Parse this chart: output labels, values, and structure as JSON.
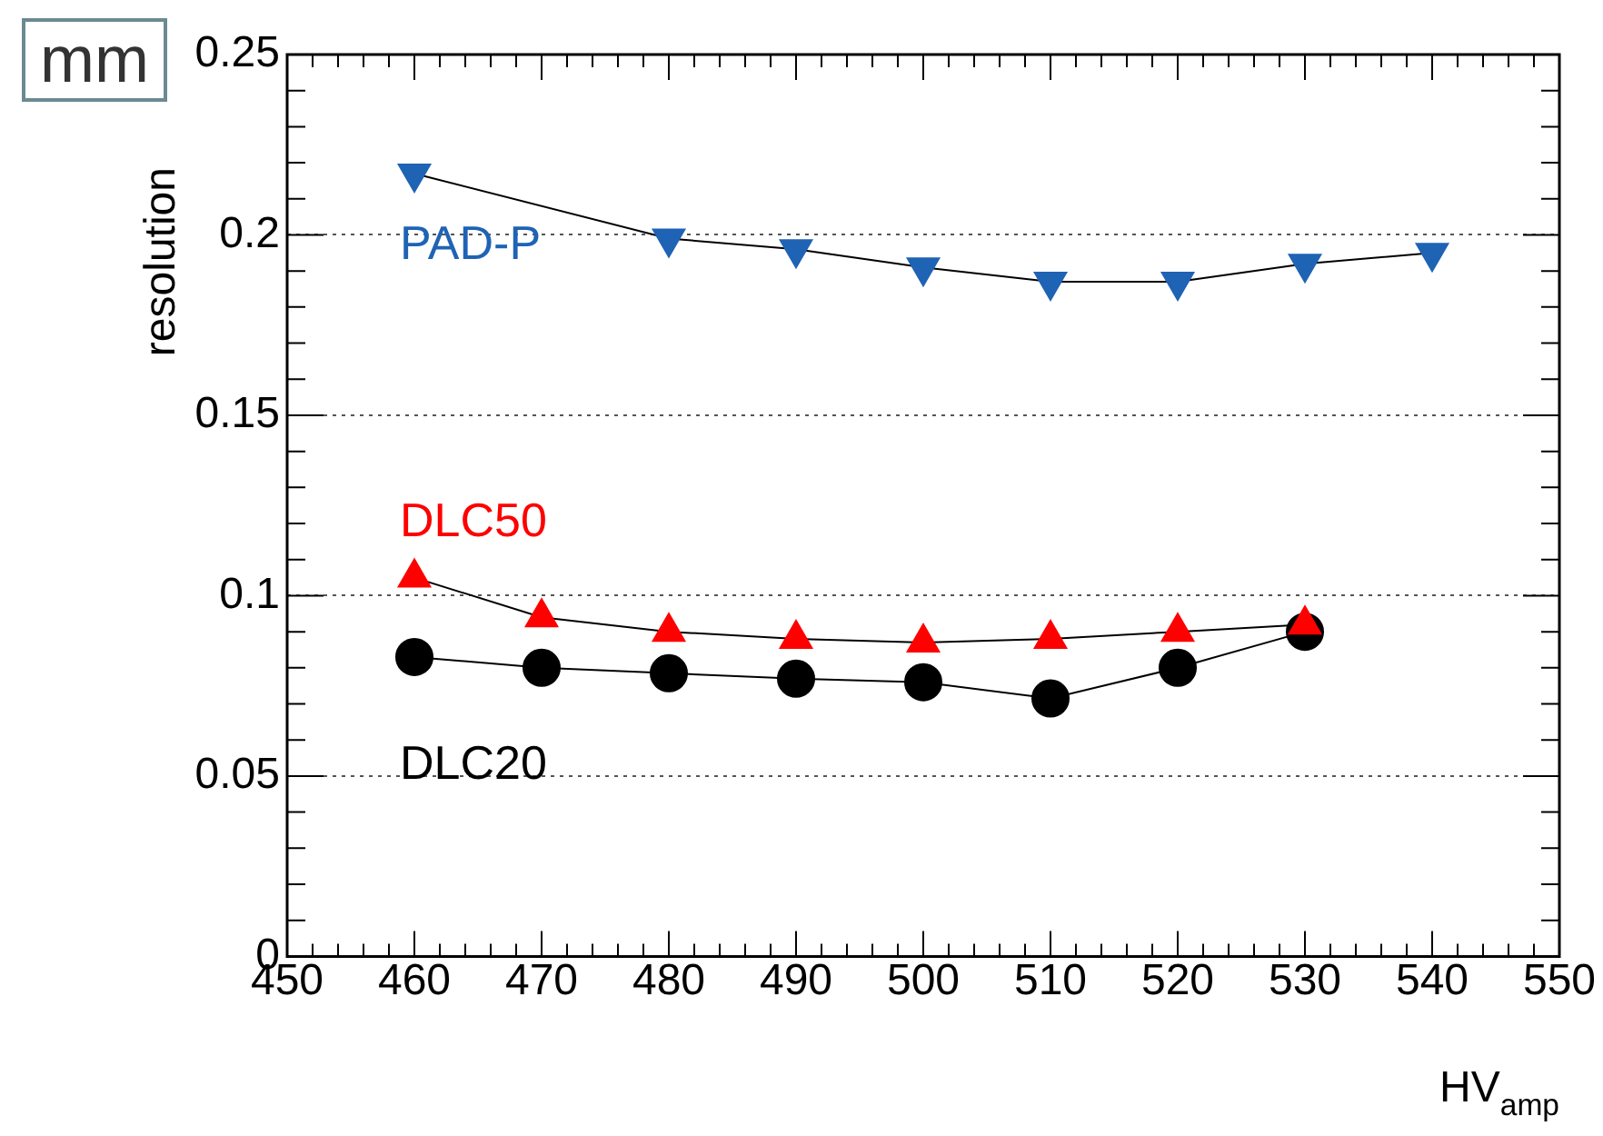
{
  "chart_data": {
    "type": "line",
    "xlabel": "HV$_{amp}$",
    "ylabel": "resolution",
    "annotations": [
      "mm"
    ],
    "xlim": [
      450,
      550
    ],
    "xticks": [
      450,
      460,
      470,
      480,
      490,
      500,
      510,
      520,
      530,
      540,
      550
    ],
    "ylim": [
      0,
      0.25
    ],
    "yticks": [
      0,
      0.05,
      0.1,
      0.15,
      0.2,
      0.25
    ],
    "grid": "y",
    "legend": "left",
    "line_style": "solid",
    "series": [
      {
        "name": "PAD-P",
        "color": "#1f63b5",
        "marker": "triangle_down",
        "x": [
          460,
          480,
          490,
          500,
          510,
          520,
          530,
          540
        ],
        "values": [
          0.217,
          0.199,
          0.196,
          0.191,
          0.187,
          0.187,
          0.192,
          0.195
        ]
      },
      {
        "name": "DLC50",
        "color": "#ff0000",
        "marker": "triangle",
        "x": [
          460,
          470,
          480,
          490,
          500,
          510,
          520,
          530
        ],
        "values": [
          0.105,
          0.094,
          0.09,
          0.088,
          0.087,
          0.088,
          0.09,
          0.092
        ]
      },
      {
        "name": "DLC20",
        "color": "#000000",
        "marker": "circle",
        "x": [
          460,
          470,
          480,
          490,
          500,
          510,
          520,
          530
        ],
        "values": [
          0.083,
          0.08,
          0.0785,
          0.077,
          0.076,
          0.0715,
          0.08,
          0.09
        ]
      }
    ]
  }
}
